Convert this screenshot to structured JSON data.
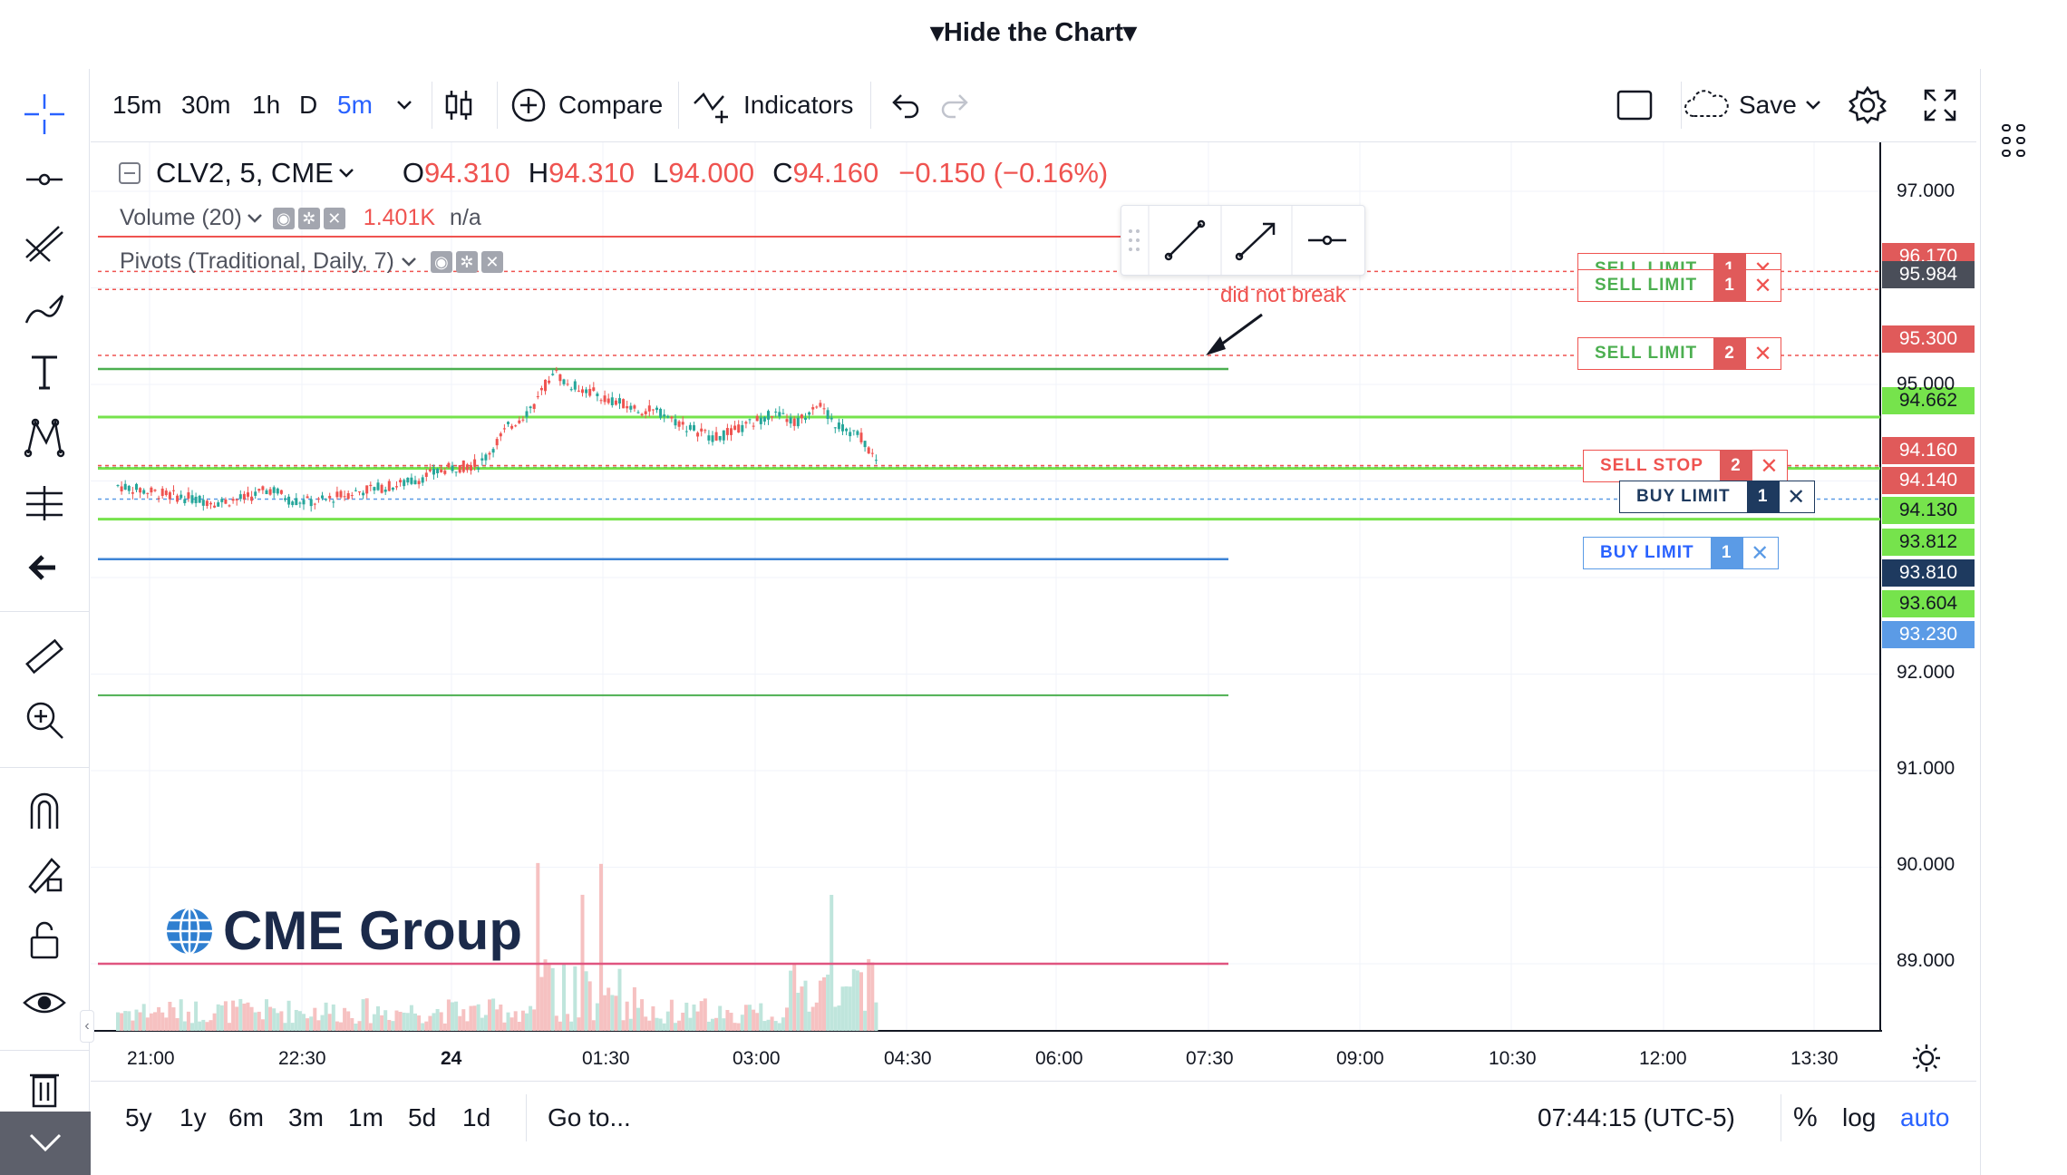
{
  "header": {
    "hide_chart_label": "▾Hide the Chart▾"
  },
  "toolbar": {
    "intervals": [
      "15m",
      "30m",
      "1h",
      "D",
      "5m"
    ],
    "active_interval": "5m",
    "compare_label": "Compare",
    "indicators_label": "Indicators",
    "save_label": "Save"
  },
  "legend": {
    "symbol": "CLV2, 5, CME",
    "o_label": "O",
    "o_value": "94.310",
    "h_label": "H",
    "h_value": "94.310",
    "l_label": "L",
    "l_value": "94.000",
    "c_label": "C",
    "c_value": "94.160",
    "change": "−0.150 (−0.16%)",
    "volume_label": "Volume (20)",
    "volume_value": "1.401K",
    "volume_na": "n/a",
    "pivots_label": "Pivots (Traditional, Daily, 7)"
  },
  "annotation": {
    "text": "did not break"
  },
  "orders": [
    {
      "label": "SELL LIMIT",
      "qty": "1",
      "type": "sell-limit",
      "price": "96.170"
    },
    {
      "label": "SELL LIMIT",
      "qty": "1",
      "type": "sell-limit",
      "price": "95.984"
    },
    {
      "label": "SELL LIMIT",
      "qty": "2",
      "type": "sell-limit",
      "price": "95.300"
    },
    {
      "label": "SELL STOP",
      "qty": "2",
      "type": "sell-stop",
      "price": "94.160"
    },
    {
      "label": "BUY LIMIT",
      "qty": "1",
      "type": "buy-limit-active",
      "price": "94.140"
    },
    {
      "label": "BUY LIMIT",
      "qty": "1",
      "type": "buy-limit",
      "price": "93.812"
    }
  ],
  "price_axis": {
    "ticks": [
      "97.000",
      "95.000",
      "92.000",
      "91.000",
      "90.000",
      "89.000"
    ],
    "tags": [
      {
        "value": "96.170",
        "color": "#e05a5a"
      },
      {
        "value": "95.984",
        "color": "#4a4e59"
      },
      {
        "value": "95.300",
        "color": "#e05a5a"
      },
      {
        "value": "94.662",
        "color": "#76e34c"
      },
      {
        "value": "94.160",
        "color": "#e05a5a"
      },
      {
        "value": "94.140",
        "color": "#e05a5a"
      },
      {
        "value": "94.130",
        "color": "#76e34c"
      },
      {
        "value": "93.812",
        "color": "#76e34c"
      },
      {
        "value": "93.810",
        "color": "#1e3a5f"
      },
      {
        "value": "93.604",
        "color": "#76e34c"
      },
      {
        "value": "93.230",
        "color": "#5b9be6"
      }
    ]
  },
  "time_axis": [
    "21:00",
    "22:30",
    "24",
    "01:30",
    "03:00",
    "04:30",
    "06:00",
    "07:30",
    "09:00",
    "10:30",
    "12:00",
    "13:30"
  ],
  "bottom": {
    "ranges": [
      "5y",
      "1y",
      "6m",
      "3m",
      "1m",
      "5d",
      "1d"
    ],
    "goto_label": "Go to...",
    "clock": "07:44:15 (UTC-5)",
    "percent_label": "%",
    "log_label": "log",
    "auto_label": "auto"
  },
  "watermark": {
    "text": "CME Group"
  },
  "colors": {
    "up": "#26a69a",
    "down": "#ef5350",
    "accent": "#2962ff"
  }
}
